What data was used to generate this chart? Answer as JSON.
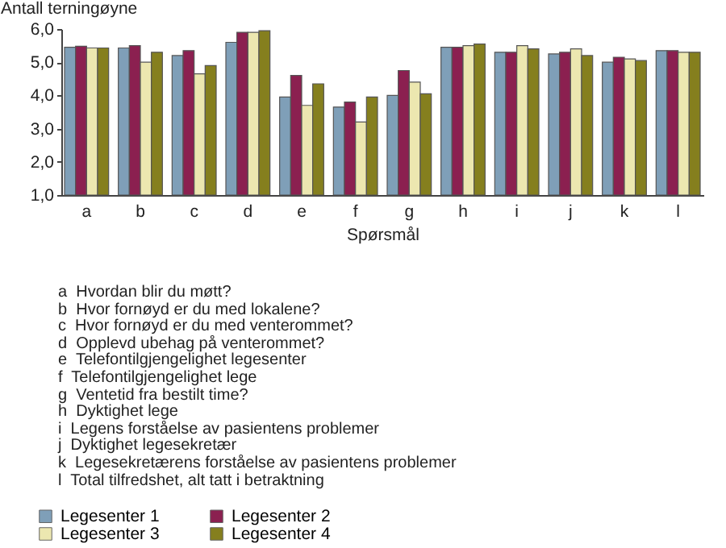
{
  "chart_data": {
    "type": "bar",
    "ylabel": "Antall terningøyne",
    "xlabel": "Spørsmål",
    "categories": [
      "a",
      "b",
      "c",
      "d",
      "e",
      "f",
      "g",
      "h",
      "i",
      "j",
      "k",
      "l"
    ],
    "series": [
      {
        "name": "Legesenter 1",
        "color": "#7f9fb8",
        "values": [
          5.45,
          5.43,
          5.2,
          5.6,
          3.95,
          3.65,
          4.0,
          5.45,
          5.3,
          5.25,
          5.0,
          5.35
        ]
      },
      {
        "name": "Legesenter 2",
        "color": "#8b2050",
        "values": [
          5.48,
          5.5,
          5.35,
          5.9,
          4.6,
          3.8,
          4.75,
          5.45,
          5.3,
          5.3,
          5.15,
          5.35
        ]
      },
      {
        "name": "Legesenter 3",
        "color": "#ece7b0",
        "values": [
          5.43,
          5.0,
          4.65,
          5.9,
          3.7,
          3.2,
          4.4,
          5.5,
          5.5,
          5.4,
          5.1,
          5.3
        ]
      },
      {
        "name": "Legesenter 4",
        "color": "#857f1e",
        "values": [
          5.43,
          5.3,
          4.9,
          5.95,
          4.35,
          3.95,
          4.05,
          5.55,
          5.4,
          5.2,
          5.05,
          5.3
        ]
      }
    ],
    "ylim": [
      1,
      6
    ],
    "yticks": [
      {
        "value": 1,
        "label": "1,0"
      },
      {
        "value": 2,
        "label": "2,0"
      },
      {
        "value": 3,
        "label": "3,0"
      },
      {
        "value": 4,
        "label": "4,0"
      },
      {
        "value": 5,
        "label": "5,0"
      },
      {
        "value": 6,
        "label": "6,0"
      }
    ],
    "grid": false,
    "legend": "bottom left",
    "annotations": [
      "a  Hvordan blir du møtt?",
      "b  Hvor fornøyd er du med lokalene?",
      "c  Hvor fornøyd er du med venterommet?",
      "d  Opplevd ubehag på venterommet?",
      "e  Telefontilgjengelighet legesenter",
      "f  Telefontilgjengelighet lege",
      "g  Ventetid fra bestilt time?",
      "h  Dyktighet lege",
      "i  Legens forståelse av pasientens problemer",
      "j  Dyktighet legesekretær",
      "k  Legesekretærens forståelse av pasientens problemer",
      "l  Total tilfredshet, alt tatt i betraktning"
    ]
  }
}
